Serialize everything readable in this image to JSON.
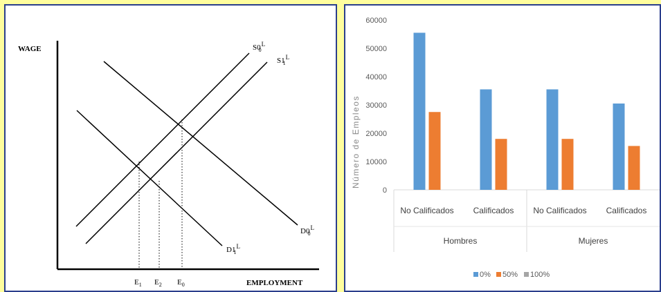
{
  "background_color": "#fffe9e",
  "border_color": "#2a3e8c",
  "chart_data": [
    {
      "type": "line",
      "xlabel": "EMPLOYMENT",
      "ylabel": "WAGE",
      "curves": [
        {
          "name": "S0",
          "sup": "L",
          "kind": "supply"
        },
        {
          "name": "S1",
          "sup": "L",
          "kind": "supply"
        },
        {
          "name": "D0",
          "sup": "L",
          "kind": "demand"
        },
        {
          "name": "D1",
          "sup": "L",
          "kind": "demand"
        }
      ],
      "equilibria": [
        {
          "name": "E",
          "sub": "1"
        },
        {
          "name": "E",
          "sub": "2"
        },
        {
          "name": "E",
          "sub": "0"
        }
      ],
      "grid": false
    },
    {
      "type": "bar",
      "ylabel": "Número de Empleos",
      "ylim": [
        0,
        60000
      ],
      "yticks": [
        0,
        10000,
        20000,
        30000,
        40000,
        50000,
        60000
      ],
      "categories": [
        "No Calificados",
        "Calificados",
        "No Calificados",
        "Calificados"
      ],
      "groups": [
        {
          "label": "Hombres",
          "span": 2
        },
        {
          "label": "Mujeres",
          "span": 2
        }
      ],
      "series": [
        {
          "name": "0%",
          "color": "#5b9bd5",
          "values": [
            55500,
            35500,
            35500,
            30500
          ]
        },
        {
          "name": "50%",
          "color": "#ed7d31",
          "values": [
            27500,
            18000,
            18000,
            15500
          ]
        },
        {
          "name": "100%",
          "color": "#a5a5a5",
          "values": [
            0,
            0,
            0,
            0
          ]
        }
      ],
      "legend": "bottom",
      "grid": false
    }
  ]
}
